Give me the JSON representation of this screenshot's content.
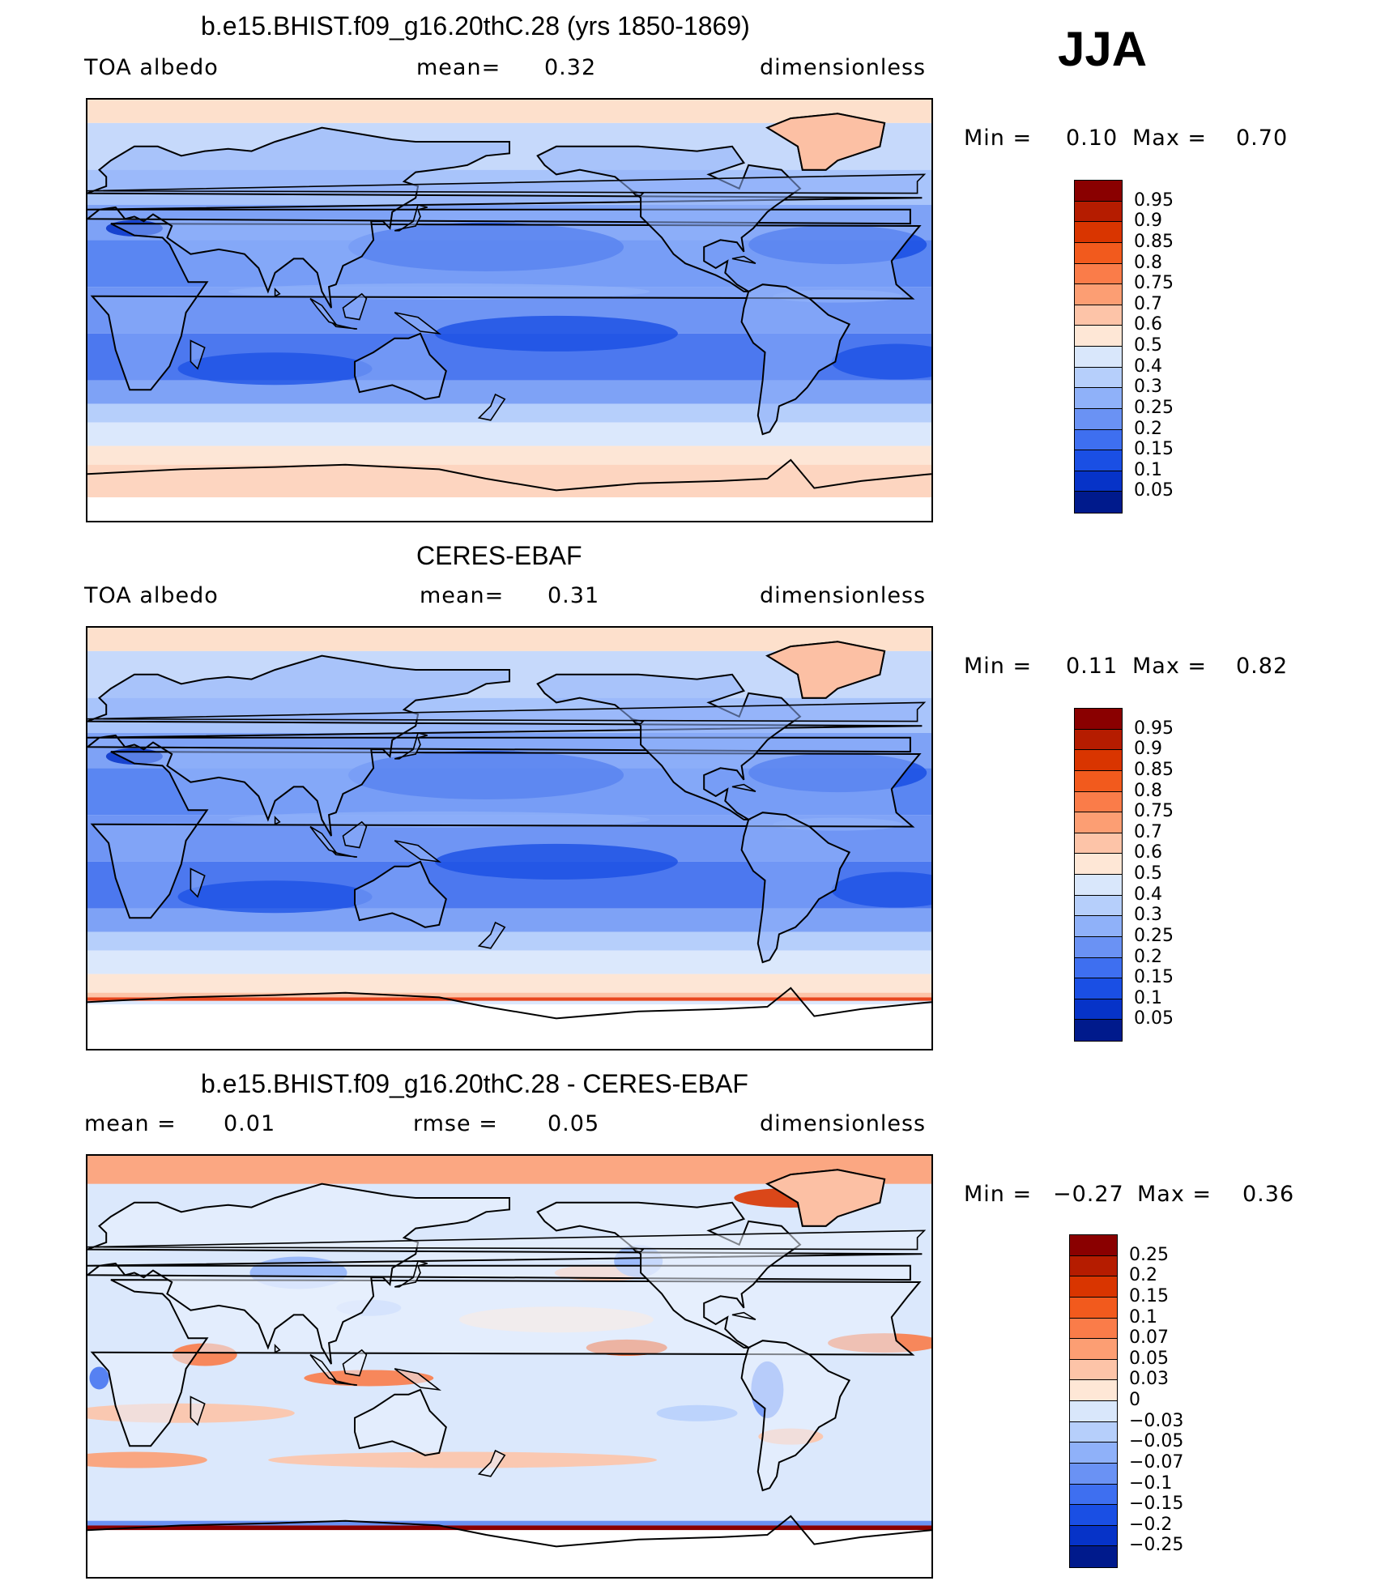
{
  "season": "JJA",
  "panels": [
    {
      "title": "b.e15.BHIST.f09_g16.20thC.28 (yrs 1850-1869)",
      "left_label": "TOA albedo",
      "center_label": "mean=",
      "center_value": "0.32",
      "right_value": "",
      "right_label": "dimensionless",
      "min_label": "Min =",
      "min_value": "0.10",
      "max_label": "Max =",
      "max_value": "0.70",
      "kind": "model",
      "colorbar": {
        "labels": [
          "0.95",
          "0.9",
          "0.85",
          "0.8",
          "0.75",
          "0.7",
          "0.6",
          "0.5",
          "0.4",
          "0.3",
          "0.25",
          "0.2",
          "0.15",
          "0.1",
          "0.05"
        ],
        "colors": [
          "#8a0000",
          "#b51c00",
          "#d93500",
          "#f25a1d",
          "#fa7c49",
          "#fc9e73",
          "#fdc4a8",
          "#fee7d6",
          "#d9e7fb",
          "#b6cffb",
          "#8fb1f9",
          "#6a92f4",
          "#3e6ff0",
          "#1a4fe4",
          "#0633c8",
          "#001a8c"
        ]
      }
    },
    {
      "title": "CERES-EBAF",
      "left_label": "TOA albedo",
      "center_label": "mean=",
      "center_value": "0.31",
      "right_value": "",
      "right_label": "dimensionless",
      "min_label": "Min =",
      "min_value": "0.11",
      "max_label": "Max =",
      "max_value": "0.82",
      "kind": "obs",
      "colorbar": {
        "labels": [
          "0.95",
          "0.9",
          "0.85",
          "0.8",
          "0.75",
          "0.7",
          "0.6",
          "0.5",
          "0.4",
          "0.3",
          "0.25",
          "0.2",
          "0.15",
          "0.1",
          "0.05"
        ],
        "colors": [
          "#8a0000",
          "#b51c00",
          "#d93500",
          "#f25a1d",
          "#fa7c49",
          "#fc9e73",
          "#fdc4a8",
          "#fee7d6",
          "#d9e7fb",
          "#b6cffb",
          "#8fb1f9",
          "#6a92f4",
          "#3e6ff0",
          "#1a4fe4",
          "#0633c8",
          "#001a8c"
        ]
      }
    },
    {
      "title": "b.e15.BHIST.f09_g16.20thC.28 - CERES-EBAF",
      "left_label": "mean =",
      "left_value": "0.01",
      "center_label": "rmse =",
      "center_value": "0.05",
      "right_label": "dimensionless",
      "min_label": "Min =",
      "min_value": "−0.27",
      "max_label": "Max =",
      "max_value": "0.36",
      "kind": "diff",
      "colorbar": {
        "labels": [
          "0.25",
          "0.2",
          "0.15",
          "0.1",
          "0.07",
          "0.05",
          "0.03",
          "0",
          "−0.03",
          "−0.05",
          "−0.07",
          "−0.1",
          "−0.15",
          "−0.2",
          "−0.25"
        ],
        "colors": [
          "#8a0000",
          "#b51c00",
          "#d93500",
          "#f25a1d",
          "#fa7c49",
          "#fc9e73",
          "#fdc4a8",
          "#fee7d6",
          "#d9e7fb",
          "#b6cffb",
          "#8fb1f9",
          "#6a92f4",
          "#3e6ff0",
          "#1a4fe4",
          "#0633c8",
          "#001a8c"
        ]
      }
    }
  ]
}
